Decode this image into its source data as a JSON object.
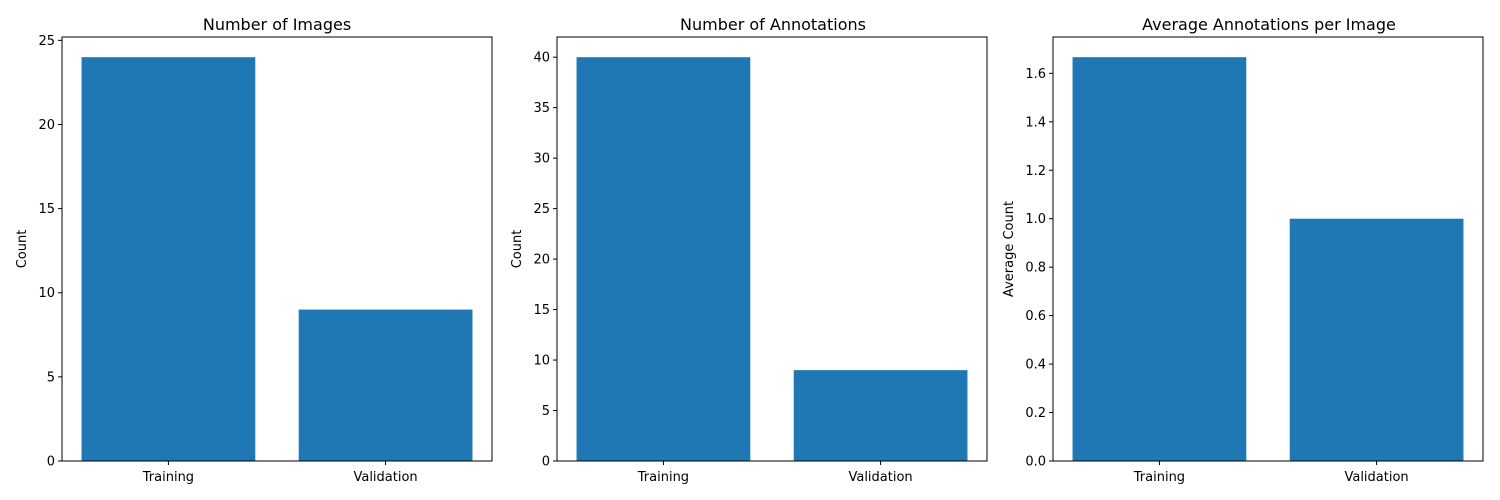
{
  "figure": {
    "bar_color": "#1f77b4",
    "axis_color": "#000000"
  },
  "chart_data": [
    {
      "type": "bar",
      "title": "Number of Images",
      "xlabel": "",
      "ylabel": "Count",
      "categories": [
        "Training",
        "Validation"
      ],
      "values": [
        24,
        9
      ],
      "ylim": [
        0,
        25.2
      ],
      "yticks": [
        0,
        5,
        10,
        15,
        20,
        25
      ],
      "ytick_labels": [
        "0",
        "5",
        "10",
        "15",
        "20",
        "25"
      ],
      "grid": false
    },
    {
      "type": "bar",
      "title": "Number of Annotations",
      "xlabel": "",
      "ylabel": "Count",
      "categories": [
        "Training",
        "Validation"
      ],
      "values": [
        40,
        9
      ],
      "ylim": [
        0,
        42
      ],
      "yticks": [
        0,
        5,
        10,
        15,
        20,
        25,
        30,
        35,
        40
      ],
      "ytick_labels": [
        "0",
        "5",
        "10",
        "15",
        "20",
        "25",
        "30",
        "35",
        "40"
      ],
      "grid": false
    },
    {
      "type": "bar",
      "title": "Average Annotations per Image",
      "xlabel": "",
      "ylabel": "Average Count",
      "categories": [
        "Training",
        "Validation"
      ],
      "values": [
        1.6667,
        1.0
      ],
      "ylim": [
        0,
        1.75
      ],
      "yticks": [
        0,
        0.2,
        0.4,
        0.6,
        0.8,
        1.0,
        1.2,
        1.4,
        1.6
      ],
      "ytick_labels": [
        "0.0",
        "0.2",
        "0.4",
        "0.6",
        "0.8",
        "1.0",
        "1.2",
        "1.4",
        "1.6"
      ],
      "grid": false
    }
  ]
}
